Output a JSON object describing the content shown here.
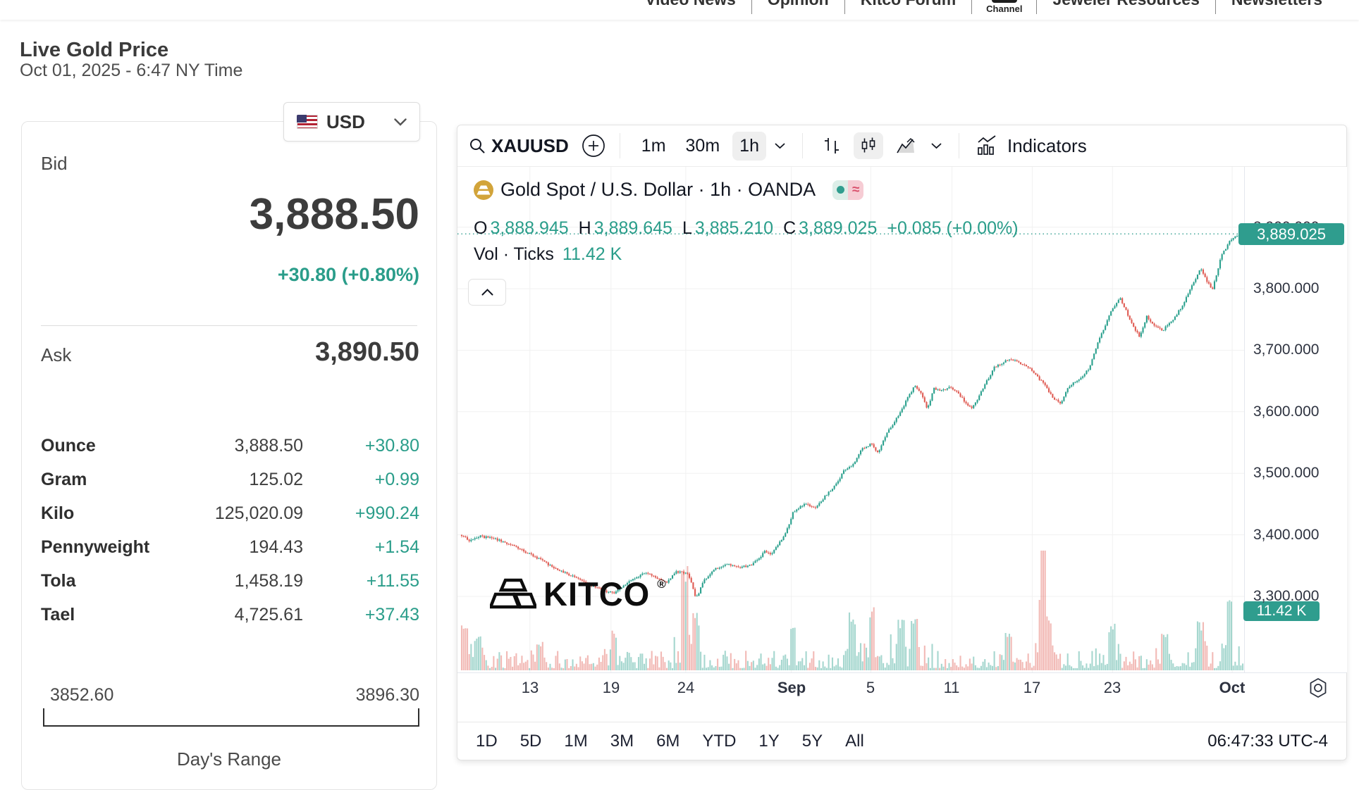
{
  "nav": {
    "items": [
      "Video News",
      "Opinion",
      "Kitco Forum",
      "Channel",
      "Jeweler Resources",
      "Newsletters"
    ]
  },
  "header": {
    "title": "Live Gold Price",
    "datetime": "Oct 01, 2025 - 6:47 NY Time"
  },
  "currency": {
    "label": "USD"
  },
  "quote": {
    "bid_label": "Bid",
    "bid": "3,888.50",
    "change": "+30.80 (+0.80%)",
    "ask_label": "Ask",
    "ask": "3,890.50",
    "units": [
      {
        "label": "Ounce",
        "value": "3,888.50",
        "change": "+30.80"
      },
      {
        "label": "Gram",
        "value": "125.02",
        "change": "+0.99"
      },
      {
        "label": "Kilo",
        "value": "125,020.09",
        "change": "+990.24"
      },
      {
        "label": "Pennyweight",
        "value": "194.43",
        "change": "+1.54"
      },
      {
        "label": "Tola",
        "value": "1,458.19",
        "change": "+11.55"
      },
      {
        "label": "Tael",
        "value": "4,725.61",
        "change": "+37.43"
      }
    ],
    "range": {
      "low": "3852.60",
      "high": "3896.30",
      "label": "Day's Range"
    }
  },
  "toolbar": {
    "symbol": "XAUUSD",
    "intervals": [
      "1m",
      "30m",
      "1h"
    ],
    "active_interval": "1h",
    "indicators_label": "Indicators"
  },
  "legend": {
    "title": "Gold Spot / U.S. Dollar · 1h · OANDA",
    "ohlc": [
      [
        "O",
        "3,888.945"
      ],
      [
        "H",
        "3,889.645"
      ],
      [
        "L",
        "3,885.210"
      ],
      [
        "C",
        "3,889.025"
      ]
    ],
    "change": "+0.085 (+0.00%)",
    "vol_label": "Vol · Ticks",
    "vol_value": "11.42 K",
    "approx_glyph": "≈"
  },
  "watermark": {
    "text": "KITCO",
    "reg": "®"
  },
  "bottom": {
    "ranges": [
      "1D",
      "5D",
      "1M",
      "3M",
      "6M",
      "YTD",
      "1Y",
      "5Y",
      "All"
    ],
    "clock": "06:47:33 UTC-4"
  },
  "chart_data": {
    "type": "candlestick",
    "symbol": "XAUUSD",
    "title": "Gold Spot / U.S. Dollar",
    "interval": "1h",
    "exchange": "OANDA",
    "ohlc_current": {
      "open": 3888.945,
      "high": 3889.645,
      "low": 3885.21,
      "close": 3889.025,
      "change": 0.085,
      "change_pct": 0.0,
      "volume_ticks": "11.42 K"
    },
    "last_price": 3889.025,
    "last_price_label": "3,889.025",
    "volume_tag": "11.42 K",
    "y_axis": {
      "labels": [
        "3,900.000",
        "3,800.000",
        "3,700.000",
        "3,600.000",
        "3,500.000",
        "3,400.000",
        "3,300.000"
      ],
      "values": [
        3900,
        3800,
        3700,
        3600,
        3500,
        3400,
        3300
      ],
      "range": [
        3250,
        3998
      ]
    },
    "x_axis": {
      "labels": [
        "13",
        "19",
        "24",
        "Sep",
        "5",
        "11",
        "17",
        "23",
        "Oct"
      ],
      "positions": [
        0.092,
        0.195,
        0.29,
        0.424,
        0.525,
        0.628,
        0.73,
        0.832,
        0.984
      ],
      "bold": [
        false,
        false,
        false,
        true,
        false,
        false,
        false,
        false,
        true
      ]
    },
    "trend_keypoints": [
      [
        0.0,
        3400
      ],
      [
        0.01,
        3390
      ],
      [
        0.022,
        3398
      ],
      [
        0.04,
        3394
      ],
      [
        0.06,
        3386
      ],
      [
        0.08,
        3373
      ],
      [
        0.1,
        3360
      ],
      [
        0.12,
        3345
      ],
      [
        0.14,
        3334
      ],
      [
        0.16,
        3322
      ],
      [
        0.18,
        3310
      ],
      [
        0.195,
        3305
      ],
      [
        0.205,
        3316
      ],
      [
        0.22,
        3328
      ],
      [
        0.235,
        3338
      ],
      [
        0.25,
        3330
      ],
      [
        0.262,
        3322
      ],
      [
        0.275,
        3340
      ],
      [
        0.29,
        3338
      ],
      [
        0.3,
        3296
      ],
      [
        0.31,
        3325
      ],
      [
        0.325,
        3345
      ],
      [
        0.34,
        3352
      ],
      [
        0.355,
        3347
      ],
      [
        0.369,
        3350
      ],
      [
        0.38,
        3360
      ],
      [
        0.388,
        3374
      ],
      [
        0.396,
        3368
      ],
      [
        0.405,
        3385
      ],
      [
        0.415,
        3402
      ],
      [
        0.424,
        3436
      ],
      [
        0.438,
        3450
      ],
      [
        0.452,
        3444
      ],
      [
        0.465,
        3462
      ],
      [
        0.478,
        3480
      ],
      [
        0.49,
        3505
      ],
      [
        0.5,
        3512
      ],
      [
        0.512,
        3540
      ],
      [
        0.525,
        3548
      ],
      [
        0.533,
        3533
      ],
      [
        0.542,
        3560
      ],
      [
        0.552,
        3580
      ],
      [
        0.562,
        3600
      ],
      [
        0.572,
        3625
      ],
      [
        0.58,
        3642
      ],
      [
        0.588,
        3630
      ],
      [
        0.596,
        3605
      ],
      [
        0.605,
        3638
      ],
      [
        0.615,
        3635
      ],
      [
        0.625,
        3640
      ],
      [
        0.636,
        3630
      ],
      [
        0.645,
        3615
      ],
      [
        0.652,
        3605
      ],
      [
        0.66,
        3618
      ],
      [
        0.67,
        3645
      ],
      [
        0.682,
        3672
      ],
      [
        0.7,
        3686
      ],
      [
        0.718,
        3678
      ],
      [
        0.73,
        3668
      ],
      [
        0.745,
        3645
      ],
      [
        0.758,
        3622
      ],
      [
        0.767,
        3612
      ],
      [
        0.776,
        3640
      ],
      [
        0.79,
        3652
      ],
      [
        0.803,
        3670
      ],
      [
        0.817,
        3720
      ],
      [
        0.832,
        3765
      ],
      [
        0.843,
        3785
      ],
      [
        0.852,
        3760
      ],
      [
        0.861,
        3735
      ],
      [
        0.868,
        3722
      ],
      [
        0.877,
        3755
      ],
      [
        0.886,
        3740
      ],
      [
        0.897,
        3732
      ],
      [
        0.91,
        3748
      ],
      [
        0.924,
        3775
      ],
      [
        0.937,
        3810
      ],
      [
        0.946,
        3832
      ],
      [
        0.953,
        3815
      ],
      [
        0.961,
        3798
      ],
      [
        0.973,
        3855
      ],
      [
        0.986,
        3882
      ],
      [
        1.0,
        3889
      ]
    ],
    "volume_spikes": [
      [
        0.004,
        70
      ],
      [
        0.02,
        48
      ],
      [
        0.1,
        40
      ],
      [
        0.195,
        55
      ],
      [
        0.285,
        140
      ],
      [
        0.3,
        80
      ],
      [
        0.424,
        60
      ],
      [
        0.5,
        80
      ],
      [
        0.525,
        95
      ],
      [
        0.562,
        70
      ],
      [
        0.58,
        85
      ],
      [
        0.7,
        60
      ],
      [
        0.745,
        165
      ],
      [
        0.752,
        75
      ],
      [
        0.832,
        65
      ],
      [
        0.9,
        55
      ],
      [
        0.946,
        70
      ],
      [
        0.983,
        115
      ]
    ],
    "colors": {
      "up": "#2aa08d",
      "down": "#df5a52",
      "accent": "#2f9d8e",
      "grid": "#f1f1f1"
    },
    "legend_position": "top-left",
    "grid": true
  }
}
